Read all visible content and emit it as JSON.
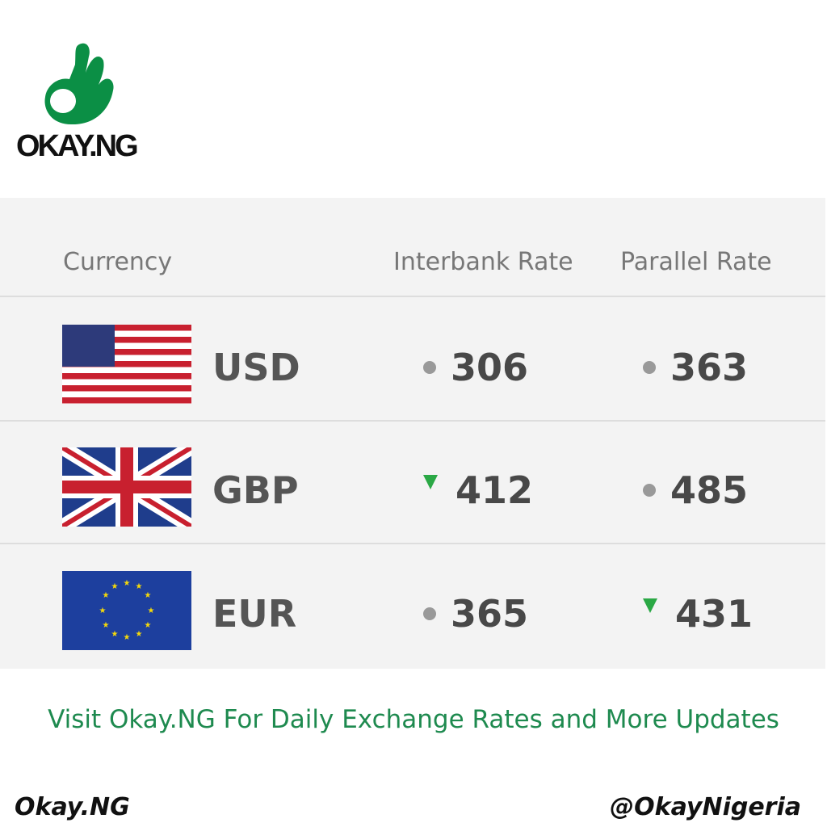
{
  "brand": {
    "logo_text": "OKAY.NG",
    "color": "#0b8f45"
  },
  "table": {
    "headers": {
      "currency": "Currency",
      "interbank": "Interbank Rate",
      "parallel": "Parallel Rate"
    },
    "rows": [
      {
        "code": "USD",
        "flag": "us-flag",
        "interbank": "306",
        "interbank_trend": "unchanged",
        "parallel": "363",
        "parallel_trend": "unchanged"
      },
      {
        "code": "GBP",
        "flag": "uk-flag",
        "interbank": "412",
        "interbank_trend": "down",
        "parallel": "485",
        "parallel_trend": "unchanged"
      },
      {
        "code": "EUR",
        "flag": "eu-flag",
        "interbank": "365",
        "interbank_trend": "unchanged",
        "parallel": "431",
        "parallel_trend": "down"
      }
    ],
    "trend_colors": {
      "down": "#2aa845",
      "unchanged": "#999999"
    }
  },
  "cta": "Visit Okay.NG For Daily Exchange Rates and More Updates",
  "footer": {
    "left": "Okay.NG",
    "right": "@OkayNigeria"
  }
}
